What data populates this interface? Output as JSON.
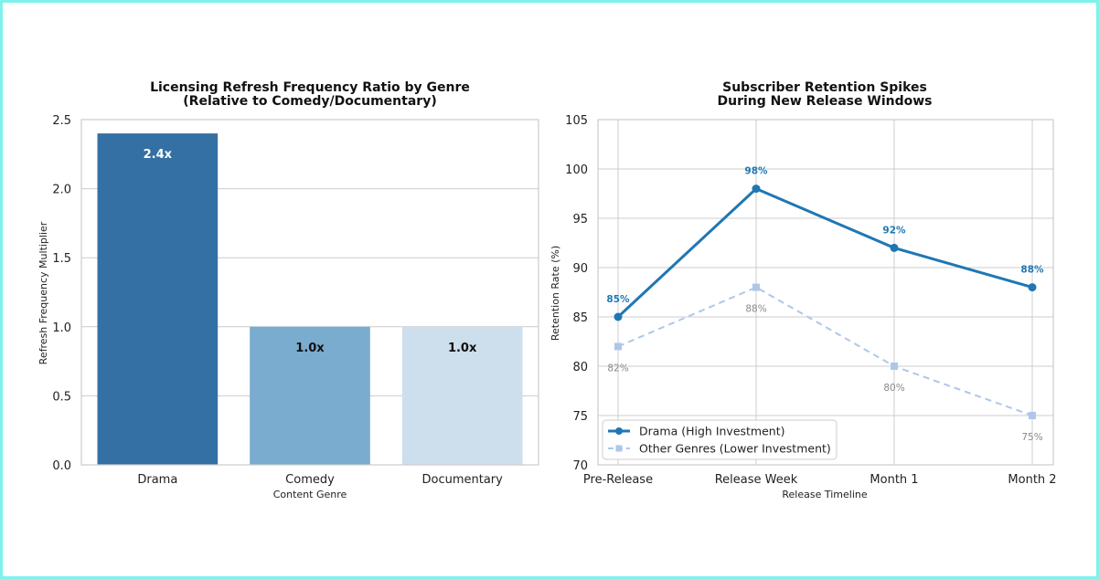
{
  "chart_data": [
    {
      "type": "bar",
      "title": "Licensing Refresh Frequency Ratio by Genre",
      "subtitle": "(Relative to Comedy/Documentary)",
      "xlabel": "Content Genre",
      "ylabel": "Refresh Frequency Multiplier",
      "categories": [
        "Drama",
        "Comedy",
        "Documentary"
      ],
      "values": [
        2.4,
        1.0,
        1.0
      ],
      "value_labels": [
        "2.4x",
        "1.0x",
        "1.0x"
      ],
      "colors": [
        "#3470a3",
        "#79acce",
        "#cddeed"
      ],
      "label_colors": [
        "#ffffff",
        "#111111",
        "#111111"
      ],
      "ylim": [
        0,
        2.5
      ],
      "yticks": [
        0.0,
        0.5,
        1.0,
        1.5,
        2.0,
        2.5
      ],
      "ytick_labels": [
        "0.0",
        "0.5",
        "1.0",
        "1.5",
        "2.0",
        "2.5"
      ],
      "grid": true
    },
    {
      "type": "line",
      "title": "Subscriber Retention Spikes",
      "subtitle": "During New Release Windows",
      "xlabel": "Release Timeline",
      "ylabel": "Retention Rate (%)",
      "categories": [
        "Pre-Release",
        "Release Week",
        "Month 1",
        "Month 2"
      ],
      "series": [
        {
          "name": "Drama (High Investment)",
          "values": [
            85,
            98,
            92,
            88
          ],
          "value_labels": [
            "85%",
            "98%",
            "92%",
            "88%"
          ],
          "color": "#1f77b4",
          "style": "solid",
          "marker": "circle",
          "label_position": "above"
        },
        {
          "name": "Other Genres (Lower Investment)",
          "values": [
            82,
            88,
            80,
            75
          ],
          "value_labels": [
            "82%",
            "88%",
            "80%",
            "75%"
          ],
          "color": "#aec7e8",
          "style": "dashed",
          "marker": "square",
          "label_position": "below"
        }
      ],
      "ylim": [
        70,
        105
      ],
      "yticks": [
        70,
        75,
        80,
        85,
        90,
        95,
        100,
        105
      ],
      "ytick_labels": [
        "70",
        "75",
        "80",
        "85",
        "90",
        "95",
        "100",
        "105"
      ],
      "legend": "lower-left",
      "grid": true
    }
  ]
}
